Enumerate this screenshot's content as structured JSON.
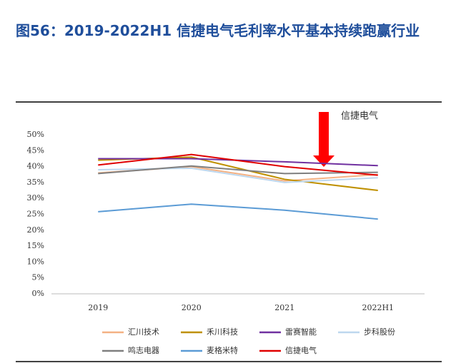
{
  "chart_data": {
    "type": "line",
    "title": "图56：2019-2022H1 信捷电气毛利率水平基本持续跑赢行业",
    "annotation": "信捷电气",
    "categories": [
      "2019",
      "2020",
      "2021",
      "2022H1"
    ],
    "ylim": [
      0,
      50
    ],
    "yticks": [
      {
        "value": 0,
        "label": "0%"
      },
      {
        "value": 5,
        "label": "5%"
      },
      {
        "value": 10,
        "label": "10%"
      },
      {
        "value": 15,
        "label": "15%"
      },
      {
        "value": 20,
        "label": "20%"
      },
      {
        "value": 25,
        "label": "25%"
      },
      {
        "value": 30,
        "label": "30%"
      },
      {
        "value": 35,
        "label": "35%"
      },
      {
        "value": 40,
        "label": "40%"
      },
      {
        "value": 45,
        "label": "45%"
      },
      {
        "value": 50,
        "label": "50%"
      }
    ],
    "series": [
      {
        "name": "汇川技术",
        "color": "#f4b183",
        "values": [
          38.0,
          40.0,
          35.5,
          37.5
        ]
      },
      {
        "name": "禾川科技",
        "color": "#bf9000",
        "values": [
          42.0,
          43.0,
          36.0,
          32.5
        ]
      },
      {
        "name": "雷赛智能",
        "color": "#7030a0",
        "values": [
          42.5,
          42.5,
          41.5,
          40.3
        ]
      },
      {
        "name": "步科股份",
        "color": "#bdd7ee",
        "values": [
          39.0,
          39.5,
          35.0,
          36.5
        ]
      },
      {
        "name": "鸣志电器",
        "color": "#7f7f7f",
        "values": [
          37.8,
          40.2,
          37.8,
          38.2
        ]
      },
      {
        "name": "麦格米特",
        "color": "#5b9bd5",
        "values": [
          25.8,
          28.2,
          26.3,
          23.5
        ]
      },
      {
        "name": "信捷电气",
        "color": "#e00000",
        "values": [
          40.5,
          43.8,
          40.0,
          37.3
        ]
      }
    ]
  }
}
